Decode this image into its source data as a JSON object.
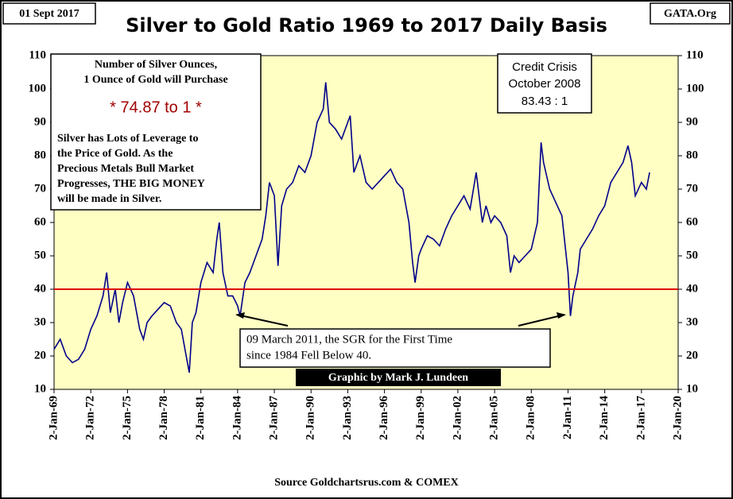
{
  "chart_data": {
    "type": "line",
    "title": "Silver to Gold Ratio 1969 to 2017 Daily Basis",
    "date": "01 Sept 2017",
    "publisher": "GATA.Org",
    "source": "Source Goldchartsrus.com & COMEX",
    "credit": "Graphic by Mark J. Lundeen",
    "annotations": {
      "info_box": [
        "Number of Silver Ounces,",
        "1 Ounce of Gold will Purchase",
        "* 74.87 to 1 *",
        "Silver has Lots of Leverage to",
        "the Price of Gold.  As the",
        "Precious Metals Bull Market",
        "Progresses,  THE BIG MONEY",
        "will be made in Silver."
      ],
      "crisis_box": [
        "Credit Crisis",
        "October 2008",
        "83.43 : 1"
      ],
      "march_box": [
        "09 March 2011, the SGR for the First Time",
        "since 1984 Fell Below 40."
      ]
    },
    "color": "#00008b",
    "reference_line": {
      "value": 40,
      "color": "#e00000"
    },
    "x": [
      1969,
      1969.5,
      1970,
      1970.5,
      1971,
      1971.5,
      1972,
      1972.5,
      1973,
      1973.3,
      1973.6,
      1974,
      1974.3,
      1974.6,
      1975,
      1975.5,
      1976,
      1976.3,
      1976.6,
      1977,
      1977.5,
      1978,
      1978.5,
      1979,
      1979.4,
      1979.8,
      1980.05,
      1980.3,
      1980.6,
      1981,
      1981.5,
      1982,
      1982.3,
      1982.5,
      1982.8,
      1983.2,
      1983.6,
      1984,
      1984.2,
      1984.6,
      1985,
      1985.5,
      1986,
      1986.3,
      1986.6,
      1987,
      1987.3,
      1987.6,
      1988,
      1988.5,
      1989,
      1989.5,
      1990,
      1990.5,
      1991,
      1991.2,
      1991.5,
      1992,
      1992.5,
      1993,
      1993.2,
      1993.5,
      1994,
      1994.5,
      1995,
      1995.5,
      1996,
      1996.5,
      1997,
      1997.5,
      1998,
      1998.3,
      1998.5,
      1998.8,
      1999,
      1999.5,
      2000,
      2000.5,
      2001,
      2001.5,
      2002,
      2002.5,
      2003,
      2003.5,
      2004,
      2004.3,
      2004.7,
      2005,
      2005.5,
      2006,
      2006.3,
      2006.6,
      2007,
      2007.5,
      2008,
      2008.5,
      2008.8,
      2009,
      2009.5,
      2010,
      2010.5,
      2011,
      2011.2,
      2011.4,
      2011.8,
      2012,
      2012.5,
      2013,
      2013.5,
      2014,
      2014.5,
      2015,
      2015.5,
      2015.9,
      2016.2,
      2016.5,
      2017,
      2017.4,
      2017.67
    ],
    "values": [
      22,
      25,
      20,
      18,
      19,
      22,
      28,
      32,
      38,
      45,
      33,
      40,
      30,
      36,
      42,
      38,
      28,
      25,
      30,
      32,
      34,
      36,
      35,
      30,
      28,
      20,
      15,
      30,
      33,
      42,
      48,
      45,
      55,
      60,
      45,
      38,
      38,
      35,
      32,
      42,
      45,
      50,
      55,
      62,
      72,
      68,
      47,
      65,
      70,
      72,
      77,
      75,
      80,
      90,
      94,
      102,
      90,
      88,
      85,
      90,
      92,
      75,
      80,
      72,
      70,
      72,
      74,
      76,
      72,
      70,
      60,
      48,
      42,
      50,
      52,
      56,
      55,
      53,
      58,
      62,
      65,
      68,
      64,
      75,
      60,
      65,
      60,
      62,
      60,
      56,
      45,
      50,
      48,
      50,
      52,
      60,
      84,
      78,
      70,
      66,
      62,
      45,
      32,
      38,
      45,
      52,
      55,
      58,
      62,
      65,
      72,
      75,
      78,
      83,
      78,
      68,
      72,
      70,
      75
    ],
    "xlim": [
      1969,
      2020
    ],
    "xticks": [
      {
        "value": 1969,
        "label": "2-Jan-69"
      },
      {
        "value": 1972,
        "label": "2-Jan-72"
      },
      {
        "value": 1975,
        "label": "2-Jan-75"
      },
      {
        "value": 1978,
        "label": "2-Jan-78"
      },
      {
        "value": 1981,
        "label": "2-Jan-81"
      },
      {
        "value": 1984,
        "label": "2-Jan-84"
      },
      {
        "value": 1987,
        "label": "2-Jan-87"
      },
      {
        "value": 1990,
        "label": "2-Jan-90"
      },
      {
        "value": 1993,
        "label": "2-Jan-93"
      },
      {
        "value": 1996,
        "label": "2-Jan-96"
      },
      {
        "value": 1999,
        "label": "2-Jan-99"
      },
      {
        "value": 2002,
        "label": "2-Jan-02"
      },
      {
        "value": 2005,
        "label": "2-Jan-05"
      },
      {
        "value": 2008,
        "label": "2-Jan-08"
      },
      {
        "value": 2011,
        "label": "2-Jan-11"
      },
      {
        "value": 2014,
        "label": "2-Jan-14"
      },
      {
        "value": 2017,
        "label": "2-Jan-17"
      },
      {
        "value": 2020,
        "label": "2-Jan-20"
      }
    ],
    "ylim": [
      10,
      110
    ],
    "yticks": [
      10,
      20,
      30,
      40,
      50,
      60,
      70,
      80,
      90,
      100,
      110
    ]
  }
}
